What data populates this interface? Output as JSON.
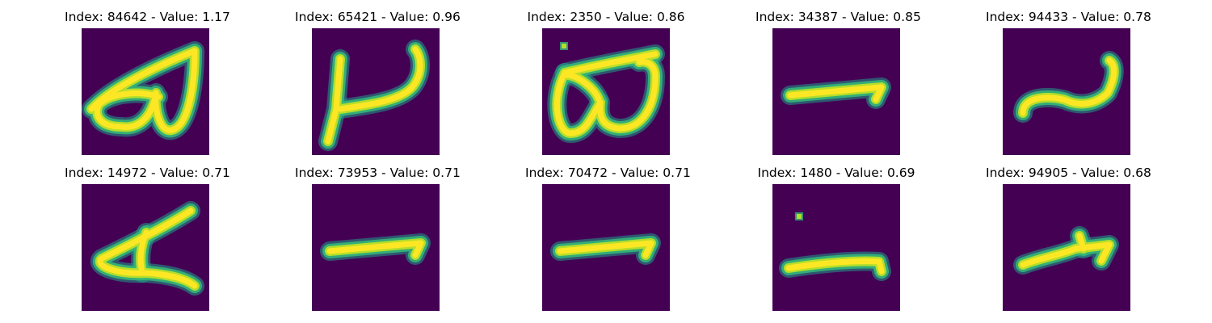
{
  "colors": {
    "background": "#440154",
    "stroke_core": "#fde725",
    "stroke_mid": "#b5de2b",
    "stroke_edge": "#35b779",
    "stroke_fringe": "#1f9e89"
  },
  "panels": [
    {
      "title": "Index: 84642 - Value: 1.17",
      "glyph": "a-loop"
    },
    {
      "title": "Index: 65421 - Value: 0.96",
      "glyph": "hook"
    },
    {
      "title": "Index: 2350 - Value: 0.86",
      "glyph": "double-loop"
    },
    {
      "title": "Index: 34387 - Value: 0.85",
      "glyph": "dash"
    },
    {
      "title": "Index: 94433 - Value: 0.78",
      "glyph": "tilde"
    },
    {
      "title": "Index: 14972 - Value: 0.71",
      "glyph": "a-open"
    },
    {
      "title": "Index: 73953 - Value: 0.71",
      "glyph": "dash"
    },
    {
      "title": "Index: 70472 - Value: 0.71",
      "glyph": "dash"
    },
    {
      "title": "Index: 1480 - Value: 0.69",
      "glyph": "dash-dot"
    },
    {
      "title": "Index: 94905 - Value: 0.68",
      "glyph": "tick"
    }
  ]
}
